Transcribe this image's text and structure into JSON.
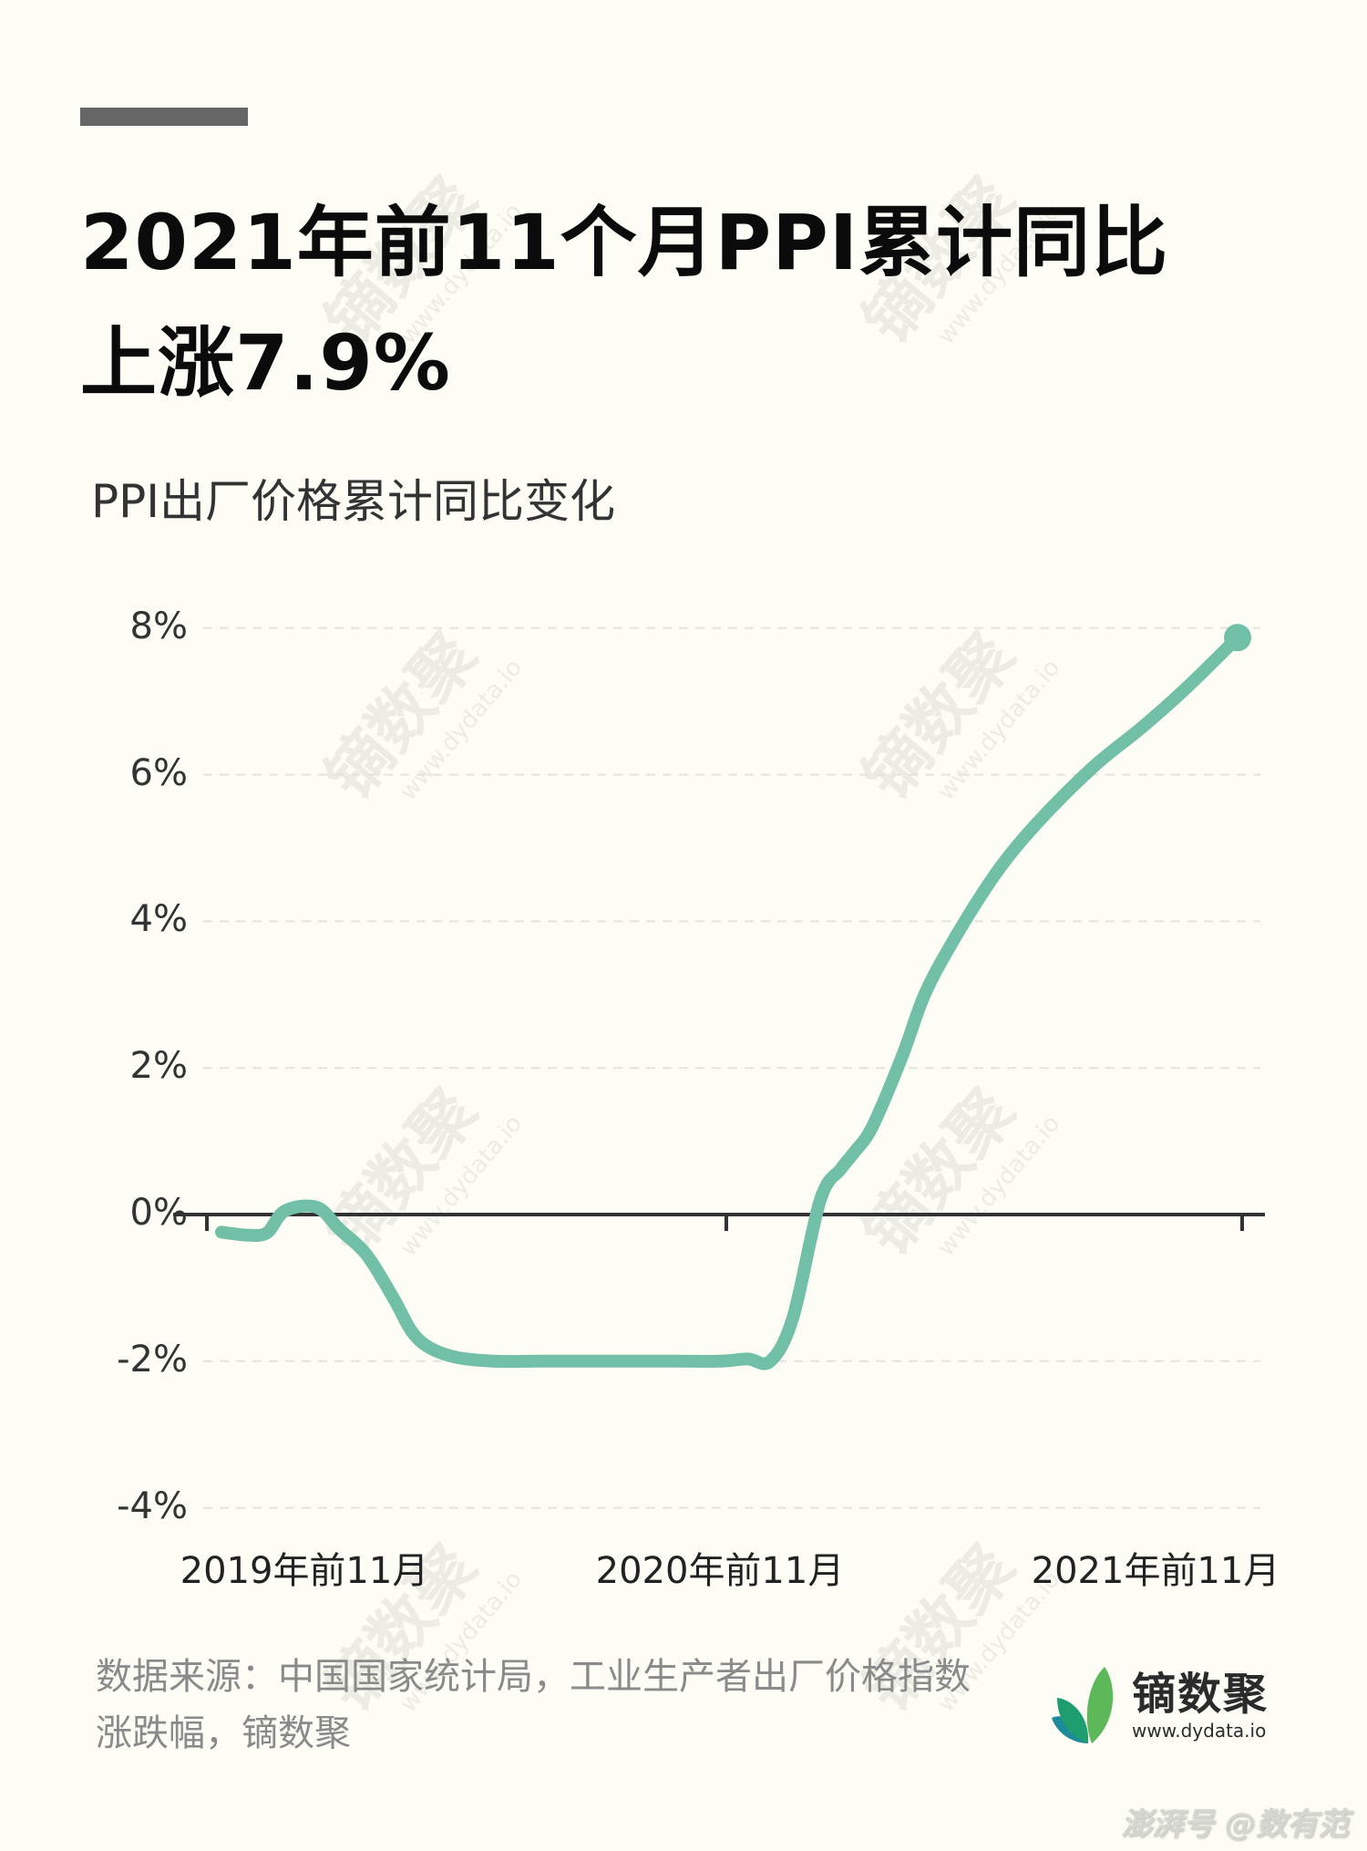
{
  "header": {
    "title_line1": "2021年前11个月PPI累计同比",
    "title_line2": "上涨7.9%",
    "subtitle": "PPI出厂价格累计同比变化"
  },
  "footer": {
    "source": "数据来源：中国国家统计局，工业生产者出厂价格指数涨跌幅，镝数聚",
    "logo_name": "镝数聚",
    "logo_url": "www.dydata.io",
    "platform_watermark": "澎湃号 @数有范"
  },
  "watermark": {
    "text": "镝数聚",
    "url": "www.dydata.io"
  },
  "colors": {
    "background": "#FDFDF6",
    "line": "#72BFA8",
    "axis": "#333333",
    "grid": "#E4E4DC",
    "top_bar": "#666666",
    "logo_leaf_light": "#5DB85A",
    "logo_leaf_mid": "#1E9E6E",
    "logo_leaf_dark": "#1F8A9A"
  },
  "chart_data": {
    "type": "line",
    "title": "PPI出厂价格累计同比变化",
    "xlabel": "",
    "ylabel": "",
    "ylim": [
      -4,
      8
    ],
    "yticks": [
      "8%",
      "6%",
      "4%",
      "2%",
      "0%",
      "-2%",
      "-4%"
    ],
    "ytick_values": [
      8,
      6,
      4,
      2,
      0,
      -2,
      -4
    ],
    "x_tick_labels": [
      "2019年前11月",
      "2020年前11月",
      "2021年前11月"
    ],
    "grid": true,
    "legend": false,
    "series": [
      {
        "name": "PPI累计同比(%)",
        "x": [
          0,
          0.55,
          1,
          1.4,
          2.1,
          2.6,
          3.2,
          3.8,
          4.2,
          4.6,
          5.2,
          6,
          7,
          8,
          9,
          10,
          11,
          11.6,
          12.1,
          12.6,
          13.2,
          13.65,
          13.95,
          14.35,
          15.0,
          15.5,
          16.1,
          16.9,
          17.5,
          18.3,
          19.3,
          20.3,
          21.3,
          22.4
        ],
        "values": [
          -0.24,
          -0.28,
          -0.25,
          0.05,
          0.1,
          -0.2,
          -0.55,
          -1.15,
          -1.6,
          -1.82,
          -1.95,
          -2.0,
          -2.0,
          -2.0,
          -2.0,
          -2.0,
          -2.0,
          -1.97,
          -2.0,
          -1.4,
          0.2,
          0.62,
          0.85,
          1.2,
          2.15,
          3.0,
          3.7,
          4.5,
          5.0,
          5.55,
          6.15,
          6.65,
          7.2,
          7.87
        ]
      }
    ],
    "end_value_label": "7.9%"
  }
}
